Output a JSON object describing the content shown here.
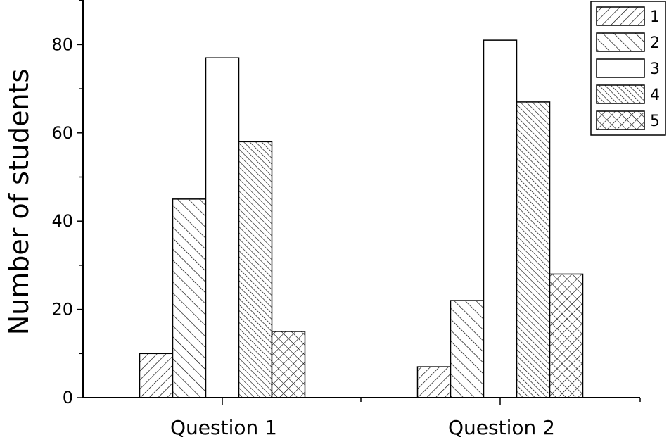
{
  "chart_data": {
    "type": "bar",
    "ylabel": "Number of students",
    "xlabel": "",
    "categories": [
      "Question 1",
      "Question 2"
    ],
    "ylim": [
      0,
      90
    ],
    "yticks": [
      0,
      20,
      40,
      60,
      80
    ],
    "grid": false,
    "legend_position": "top-right",
    "series": [
      {
        "name": "1",
        "values": [
          10,
          7
        ],
        "pattern": "diag-forward"
      },
      {
        "name": "2",
        "values": [
          45,
          22
        ],
        "pattern": "diag-back-sparse"
      },
      {
        "name": "3",
        "values": [
          77,
          81
        ],
        "pattern": "none"
      },
      {
        "name": "4",
        "values": [
          58,
          67
        ],
        "pattern": "diag-back-dense"
      },
      {
        "name": "5",
        "values": [
          15,
          28
        ],
        "pattern": "crosshatch"
      }
    ],
    "colors": {
      "stroke": "#000000",
      "fill": "#ffffff"
    }
  }
}
